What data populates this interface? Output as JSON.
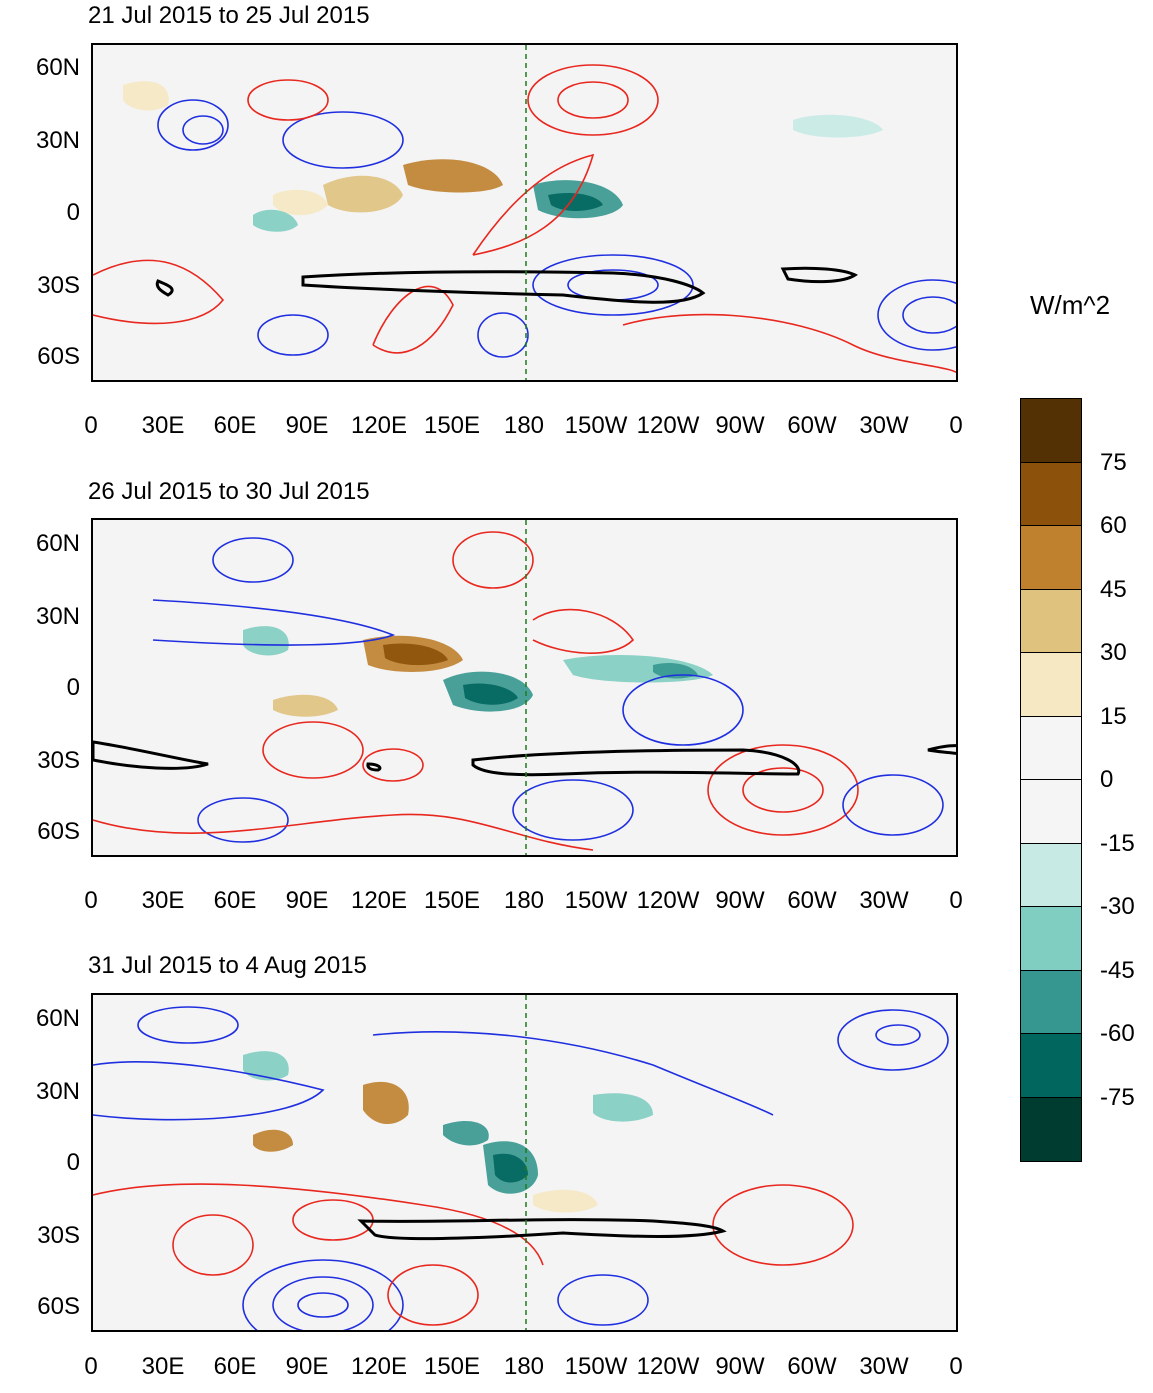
{
  "panels": [
    {
      "title": "21 Jul 2015 to 25 Jul 2015"
    },
    {
      "title": "26 Jul 2015 to 30 Jul 2015"
    },
    {
      "title": "31 Jul 2015 to 4 Aug 2015"
    }
  ],
  "lat_ticks": [
    "60N",
    "30N",
    "0",
    "30S",
    "60S"
  ],
  "lon_ticks": [
    "0",
    "30E",
    "60E",
    "90E",
    "120E",
    "150E",
    "180",
    "150W",
    "120W",
    "90W",
    "60W",
    "30W",
    "0"
  ],
  "colorbar": {
    "unit": "W/m^2",
    "labels": [
      "75",
      "60",
      "45",
      "30",
      "15",
      "0",
      "-15",
      "-30",
      "-45",
      "-60",
      "-75"
    ],
    "colors": [
      "#543005",
      "#8c510a",
      "#bf812d",
      "#dfc27d",
      "#f6e8c3",
      "#f5f5f5",
      "#f5f5f5",
      "#c7eae5",
      "#80cdc1",
      "#35978f",
      "#01665e",
      "#003c30"
    ]
  },
  "contour_colors": {
    "positive": "#e8271e",
    "negative": "#1f2fe0",
    "coast": "#1f7a1f",
    "highlight": "#000000"
  }
}
